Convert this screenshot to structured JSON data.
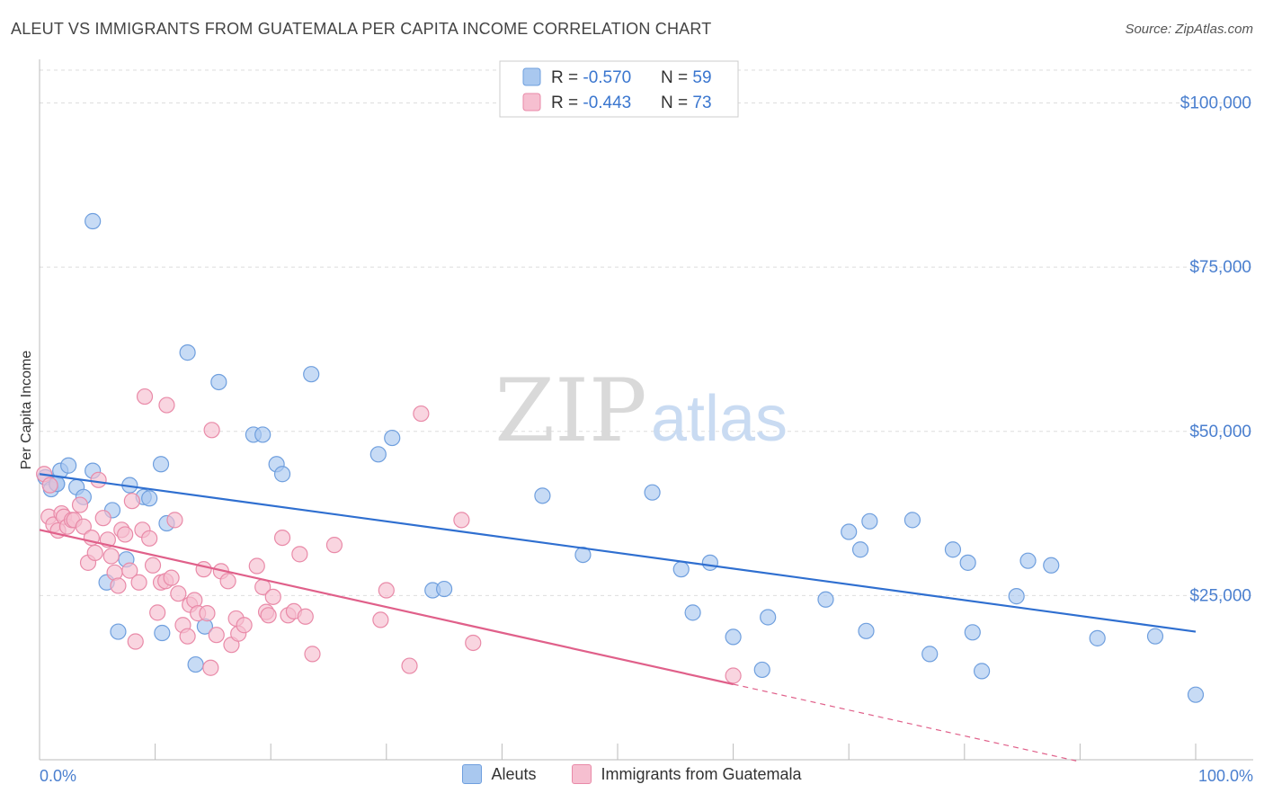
{
  "header": {
    "title": "ALEUT VS IMMIGRANTS FROM GUATEMALA PER CAPITA INCOME CORRELATION CHART",
    "source": "Source: ZipAtlas.com"
  },
  "watermark": {
    "zip": "ZIP",
    "atlas": "atlas"
  },
  "colors": {
    "blue_fill": "#a9c8ef",
    "blue_stroke": "#6f9fde",
    "blue_line": "#2f6fd0",
    "pink_fill": "#f6bfd0",
    "pink_stroke": "#e98aa8",
    "pink_line": "#e0608a",
    "axis_label": "#4a7fcf"
  },
  "legend": {
    "rows": [
      {
        "r_label": "R = ",
        "r_value": "-0.570",
        "n_label": "N = ",
        "n_value": "59"
      },
      {
        "r_label": "R = ",
        "r_value": "-0.443",
        "n_label": "N = ",
        "n_value": "73"
      }
    ]
  },
  "bottom_legend": [
    "Aleuts",
    "Immigrants from Guatemala"
  ],
  "chart_data": {
    "type": "scatter",
    "title": "ALEUT VS IMMIGRANTS FROM GUATEMALA PER CAPITA INCOME CORRELATION CHART",
    "xlabel": "",
    "ylabel": "Per Capita Income",
    "xlim": [
      0,
      100
    ],
    "ylim": [
      0,
      105000
    ],
    "x_tick_labels": [
      "0.0%",
      "100.0%"
    ],
    "y_ticks": [
      25000,
      50000,
      75000,
      100000
    ],
    "y_tick_labels": [
      "$25,000",
      "$50,000",
      "$75,000",
      "$100,000"
    ],
    "grid": true,
    "series": [
      {
        "name": "Aleuts",
        "r": -0.57,
        "n": 59,
        "trend": {
          "x": [
            0,
            100
          ],
          "y": [
            43500,
            19500
          ]
        },
        "points": [
          [
            0.5,
            43000
          ],
          [
            1.0,
            41200
          ],
          [
            1.5,
            42000
          ],
          [
            1.8,
            44000
          ],
          [
            2.5,
            44800
          ],
          [
            3.2,
            41500
          ],
          [
            3.8,
            40000
          ],
          [
            4.6,
            82000
          ],
          [
            4.6,
            44000
          ],
          [
            5.8,
            27000
          ],
          [
            6.3,
            38000
          ],
          [
            6.8,
            19500
          ],
          [
            7.5,
            30500
          ],
          [
            7.8,
            41800
          ],
          [
            9.0,
            40000
          ],
          [
            9.5,
            39800
          ],
          [
            10.5,
            45000
          ],
          [
            10.6,
            19300
          ],
          [
            11.0,
            36000
          ],
          [
            12.8,
            62000
          ],
          [
            13.5,
            14500
          ],
          [
            14.3,
            20300
          ],
          [
            15.5,
            57500
          ],
          [
            18.5,
            49500
          ],
          [
            19.3,
            49500
          ],
          [
            20.5,
            45000
          ],
          [
            21.0,
            43500
          ],
          [
            23.5,
            58700
          ],
          [
            29.3,
            46500
          ],
          [
            30.5,
            49000
          ],
          [
            34.0,
            25800
          ],
          [
            35.0,
            26000
          ],
          [
            43.5,
            40200
          ],
          [
            47.0,
            31200
          ],
          [
            53.0,
            40700
          ],
          [
            55.5,
            29000
          ],
          [
            56.5,
            22400
          ],
          [
            58.0,
            30000
          ],
          [
            60.0,
            18700
          ],
          [
            62.5,
            13700
          ],
          [
            63.0,
            21700
          ],
          [
            68.0,
            24400
          ],
          [
            70.0,
            34700
          ],
          [
            71.0,
            32000
          ],
          [
            71.5,
            19600
          ],
          [
            71.8,
            36300
          ],
          [
            75.5,
            36500
          ],
          [
            77.0,
            16100
          ],
          [
            79.0,
            32000
          ],
          [
            80.3,
            30000
          ],
          [
            80.7,
            19400
          ],
          [
            81.5,
            13500
          ],
          [
            84.5,
            24900
          ],
          [
            85.5,
            30300
          ],
          [
            87.5,
            29600
          ],
          [
            91.5,
            18500
          ],
          [
            96.5,
            18800
          ],
          [
            100.0,
            9900
          ],
          [
            1.5,
            42000
          ]
        ]
      },
      {
        "name": "Immigrants from Guatemala",
        "r": -0.443,
        "n": 73,
        "trend": {
          "x": [
            0,
            60
          ],
          "y": [
            35000,
            11500
          ]
        },
        "trend_extension": {
          "x": [
            60,
            90
          ],
          "y": [
            11500,
            -300
          ]
        },
        "points": [
          [
            0.4,
            43500
          ],
          [
            0.8,
            37000
          ],
          [
            1.2,
            35800
          ],
          [
            1.6,
            34900
          ],
          [
            1.9,
            37500
          ],
          [
            2.1,
            37000
          ],
          [
            2.4,
            35500
          ],
          [
            2.8,
            36500
          ],
          [
            3.0,
            36500
          ],
          [
            3.5,
            38800
          ],
          [
            3.8,
            35500
          ],
          [
            4.2,
            30000
          ],
          [
            4.5,
            33800
          ],
          [
            4.8,
            31500
          ],
          [
            5.1,
            42600
          ],
          [
            5.5,
            36800
          ],
          [
            5.9,
            33500
          ],
          [
            6.2,
            31000
          ],
          [
            6.5,
            28500
          ],
          [
            6.8,
            26500
          ],
          [
            7.1,
            35000
          ],
          [
            7.4,
            34300
          ],
          [
            7.8,
            28800
          ],
          [
            8.0,
            39400
          ],
          [
            8.3,
            18000
          ],
          [
            8.6,
            27000
          ],
          [
            8.9,
            35000
          ],
          [
            9.1,
            55300
          ],
          [
            9.5,
            33700
          ],
          [
            9.8,
            29600
          ],
          [
            10.2,
            22400
          ],
          [
            10.5,
            27000
          ],
          [
            10.9,
            27200
          ],
          [
            11.0,
            54000
          ],
          [
            11.4,
            27700
          ],
          [
            11.7,
            36500
          ],
          [
            12.0,
            25300
          ],
          [
            12.4,
            20500
          ],
          [
            12.8,
            18800
          ],
          [
            13.0,
            23600
          ],
          [
            13.4,
            24300
          ],
          [
            13.7,
            22300
          ],
          [
            14.2,
            29000
          ],
          [
            14.5,
            22300
          ],
          [
            14.8,
            14000
          ],
          [
            14.9,
            50200
          ],
          [
            15.3,
            19000
          ],
          [
            15.7,
            28700
          ],
          [
            16.3,
            27200
          ],
          [
            16.6,
            17500
          ],
          [
            17.0,
            21500
          ],
          [
            17.2,
            19200
          ],
          [
            17.7,
            20500
          ],
          [
            18.8,
            29500
          ],
          [
            19.3,
            26300
          ],
          [
            19.6,
            22500
          ],
          [
            19.8,
            22000
          ],
          [
            20.2,
            24800
          ],
          [
            21.0,
            33800
          ],
          [
            21.5,
            22000
          ],
          [
            22.0,
            22600
          ],
          [
            22.5,
            31300
          ],
          [
            23.0,
            21800
          ],
          [
            23.6,
            16100
          ],
          [
            25.5,
            32700
          ],
          [
            29.5,
            21300
          ],
          [
            30.0,
            25800
          ],
          [
            32.0,
            14300
          ],
          [
            33.0,
            52700
          ],
          [
            36.5,
            36500
          ],
          [
            37.5,
            17800
          ],
          [
            60.0,
            12800
          ],
          [
            0.9,
            41800
          ]
        ]
      }
    ]
  }
}
